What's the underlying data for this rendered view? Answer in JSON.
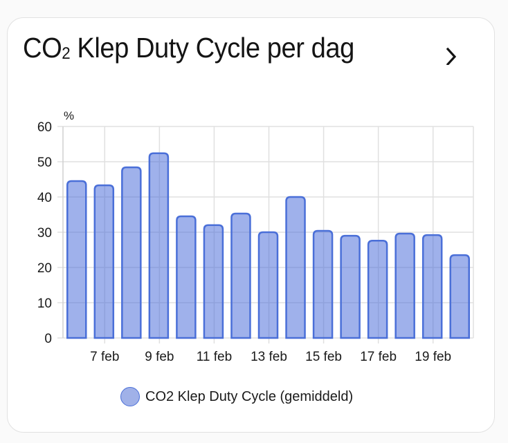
{
  "card": {
    "title_main": "CO",
    "title_sub": "2",
    "title_rest": " Klep Duty Cycle per dag",
    "more_icon": "chevron-right-icon"
  },
  "legend": {
    "label": "CO2 Klep Duty Cycle (gemiddeld)",
    "color": "#a0b1e8",
    "border_color": "#4a6fd8"
  },
  "chart_data": {
    "type": "bar",
    "title": "CO₂ Klep Duty Cycle per dag",
    "xlabel": "",
    "ylabel": "%",
    "ylim": [
      0,
      60
    ],
    "yticks": [
      0,
      10,
      20,
      30,
      40,
      50,
      60
    ],
    "grid": true,
    "legend_position": "bottom",
    "categories": [
      "6 feb",
      "7 feb",
      "8 feb",
      "9 feb",
      "10 feb",
      "11 feb",
      "12 feb",
      "13 feb",
      "14 feb",
      "15 feb",
      "16 feb",
      "17 feb",
      "18 feb",
      "19 feb",
      "20 feb"
    ],
    "xtick_labels": [
      "7 feb",
      "9 feb",
      "11 feb",
      "13 feb",
      "15 feb",
      "17 feb",
      "19 feb"
    ],
    "series": [
      {
        "name": "CO2 Klep Duty Cycle (gemiddeld)",
        "values": [
          44.5,
          43.3,
          48.4,
          52.4,
          34.5,
          32.0,
          35.3,
          30.0,
          40.0,
          30.4,
          29.0,
          27.6,
          29.6,
          29.2,
          23.5
        ]
      }
    ]
  }
}
